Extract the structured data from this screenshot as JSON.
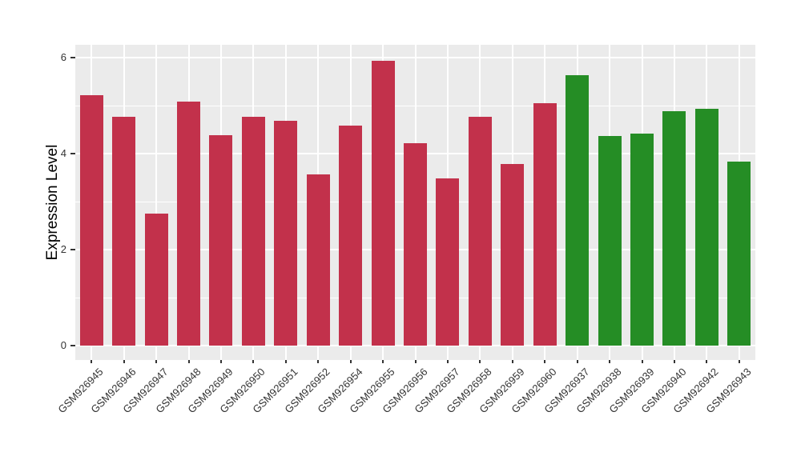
{
  "chart_data": {
    "type": "bar",
    "title": "",
    "xlabel": "",
    "ylabel": "Expression Level",
    "ylim": [
      0,
      6.3
    ],
    "yticks": [
      0,
      2,
      4,
      6
    ],
    "ytick_labels": [
      "0",
      "2",
      "4",
      "6"
    ],
    "minor_yticks": [
      1,
      3,
      5
    ],
    "grid": true,
    "legend_position": "none",
    "categories": [
      "GSM926945",
      "GSM926946",
      "GSM926947",
      "GSM926948",
      "GSM926949",
      "GSM926950",
      "GSM926951",
      "GSM926952",
      "GSM926954",
      "GSM926955",
      "GSM926956",
      "GSM926957",
      "GSM926958",
      "GSM926959",
      "GSM926960",
      "GSM926937",
      "GSM926938",
      "GSM926939",
      "GSM926940",
      "GSM926942",
      "GSM926943"
    ],
    "values": [
      5.21,
      4.77,
      2.75,
      5.08,
      4.38,
      4.76,
      4.68,
      3.57,
      4.58,
      5.93,
      4.22,
      3.48,
      4.76,
      3.79,
      5.05,
      5.63,
      4.37,
      4.41,
      4.88,
      4.93,
      3.83
    ],
    "groups": [
      "red",
      "red",
      "red",
      "red",
      "red",
      "red",
      "red",
      "red",
      "red",
      "red",
      "red",
      "red",
      "red",
      "red",
      "red",
      "green",
      "green",
      "green",
      "green",
      "green",
      "green"
    ],
    "group_colors": {
      "red": "#C2314B",
      "green": "#258D25"
    }
  },
  "style": {
    "figure_bg": "#FFFFFF",
    "panel_bg": "#EBEBEB",
    "gridline_color": "#FFFFFF",
    "tick_text_color": "#333333",
    "axis_title_color": "#000000",
    "tick_mark_color": "#333333"
  }
}
